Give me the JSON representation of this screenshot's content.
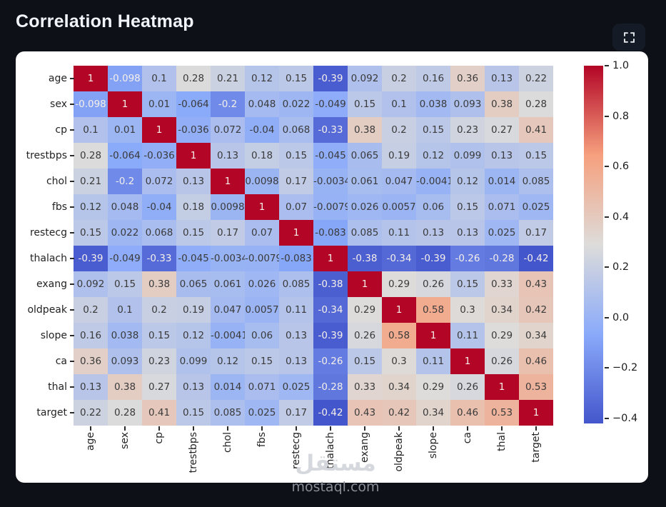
{
  "header": {
    "title": "Correlation Heatmap",
    "expand_button": "fullscreen"
  },
  "watermark": {
    "arabic": "مستقل",
    "latin": "mostaql.com"
  },
  "colors": {
    "page_background": "#0d1117",
    "card_background": "#ffffff",
    "button_background": "#151b26",
    "title_text": "#f1f4f9",
    "cmap_min": "#4456cc",
    "cmap_mid": "#dddcda",
    "cmap_max": "#b30526",
    "cell_text_dark": "#3a3a3a",
    "cell_text_light": "#f5efe9"
  },
  "chart_data": {
    "type": "heatmap",
    "title": "Correlation Heatmap",
    "colormap": "coolwarm",
    "vmin": -0.42,
    "vmax": 1.0,
    "legend_position": "right-colorbar",
    "grid": false,
    "labels": [
      "age",
      "sex",
      "cp",
      "trestbps",
      "chol",
      "fbs",
      "restecg",
      "thalach",
      "exang",
      "oldpeak",
      "slope",
      "ca",
      "thal",
      "target"
    ],
    "matrix": [
      [
        1,
        -0.098,
        0.1,
        0.28,
        0.21,
        0.12,
        0.15,
        -0.39,
        0.092,
        0.2,
        0.16,
        0.36,
        0.13,
        0.22
      ],
      [
        -0.098,
        1,
        0.01,
        -0.064,
        -0.2,
        0.048,
        0.022,
        -0.049,
        0.15,
        0.1,
        0.038,
        0.093,
        0.38,
        0.28
      ],
      [
        0.1,
        0.01,
        1,
        -0.036,
        0.072,
        -0.04,
        0.068,
        -0.33,
        0.38,
        0.2,
        0.15,
        0.23,
        0.27,
        0.41
      ],
      [
        0.28,
        -0.064,
        -0.036,
        1,
        0.13,
        0.18,
        0.15,
        -0.045,
        0.065,
        0.19,
        0.12,
        0.099,
        0.13,
        0.15
      ],
      [
        0.21,
        -0.2,
        0.072,
        0.13,
        1,
        0.0098,
        0.17,
        -0.0034,
        0.061,
        0.047,
        -0.0041,
        0.12,
        0.014,
        0.085
      ],
      [
        0.12,
        0.048,
        -0.04,
        0.18,
        0.0098,
        1,
        0.07,
        -0.0079,
        0.026,
        0.0057,
        0.06,
        0.15,
        0.071,
        0.025
      ],
      [
        0.15,
        0.022,
        0.068,
        0.15,
        0.17,
        0.07,
        1,
        -0.083,
        0.085,
        0.11,
        0.13,
        0.13,
        0.025,
        0.17
      ],
      [
        -0.39,
        -0.049,
        -0.33,
        -0.045,
        -0.0034,
        -0.0079,
        -0.083,
        1,
        -0.38,
        -0.34,
        -0.39,
        -0.26,
        -0.28,
        -0.42
      ],
      [
        0.092,
        0.15,
        0.38,
        0.065,
        0.061,
        0.026,
        0.085,
        -0.38,
        1,
        0.29,
        0.26,
        0.15,
        0.33,
        0.43
      ],
      [
        0.2,
        0.1,
        0.2,
        0.19,
        0.047,
        0.0057,
        0.11,
        -0.34,
        0.29,
        1,
        0.58,
        0.3,
        0.34,
        0.42
      ],
      [
        0.16,
        0.038,
        0.15,
        0.12,
        -0.0041,
        0.06,
        0.13,
        -0.39,
        0.26,
        0.58,
        1,
        0.11,
        0.29,
        0.34
      ],
      [
        0.36,
        0.093,
        0.23,
        0.099,
        0.12,
        0.15,
        0.13,
        -0.26,
        0.15,
        0.3,
        0.11,
        1,
        0.26,
        0.46
      ],
      [
        0.13,
        0.38,
        0.27,
        0.13,
        0.014,
        0.071,
        0.025,
        -0.28,
        0.33,
        0.34,
        0.29,
        0.26,
        1,
        0.53
      ],
      [
        0.22,
        0.28,
        0.41,
        0.15,
        0.085,
        0.025,
        0.17,
        -0.42,
        0.43,
        0.42,
        0.34,
        0.46,
        0.53,
        1
      ]
    ],
    "colorbar_ticks": [
      {
        "value": 1.0,
        "label": "1.0"
      },
      {
        "value": 0.8,
        "label": "0.8"
      },
      {
        "value": 0.6,
        "label": "0.6"
      },
      {
        "value": 0.4,
        "label": "0.4"
      },
      {
        "value": 0.2,
        "label": "0.2"
      },
      {
        "value": 0.0,
        "label": "0.0"
      },
      {
        "value": -0.2,
        "label": "−0.2"
      },
      {
        "value": -0.4,
        "label": "−0.4"
      }
    ]
  }
}
